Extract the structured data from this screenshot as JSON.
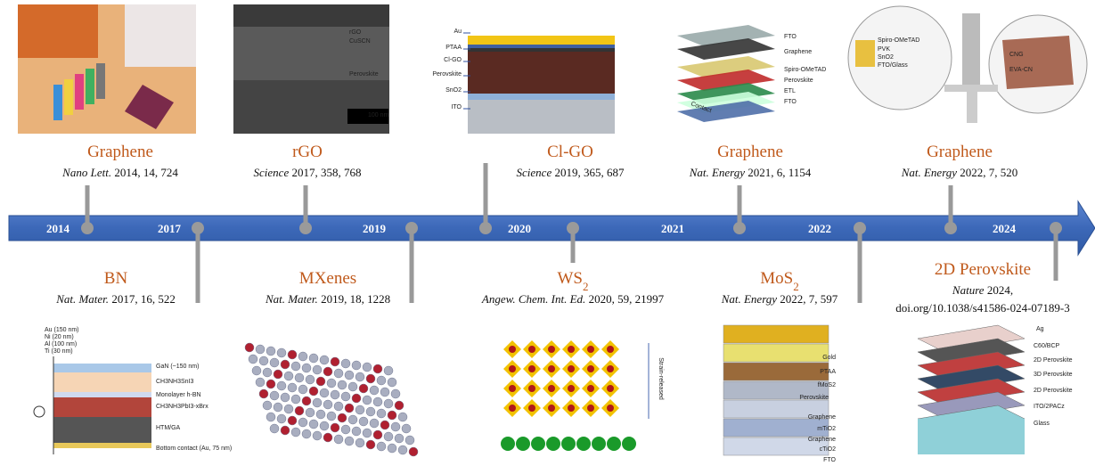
{
  "timeline": {
    "years": [
      "2014",
      "2017",
      "2019",
      "2020",
      "2021",
      "2022",
      "2024"
    ]
  },
  "milestones": [
    {
      "title": "Graphene",
      "journal": "Nano Lett.",
      "details": "2014, 14, 724",
      "image_labels": []
    },
    {
      "title": "BN",
      "journal": "Nat. Mater.",
      "details": "2017, 16, 522",
      "image_labels": [
        "Au (150 nm)",
        "Ni (20 nm)",
        "Al (100 nm)",
        "Ti (30 nm)",
        "GaN (~150 nm)",
        "CH3NH3SnI3",
        "Monolayer h-BN",
        "CH3NH3PbI3-xBrx",
        "HTM/GA",
        "Bottom contact (Au, 75 nm)"
      ]
    },
    {
      "title": "rGO",
      "journal": "Science",
      "details": "2017, 358, 768",
      "image_labels": [
        "rGO",
        "CuSCN",
        "Perovskite",
        "100 nm"
      ]
    },
    {
      "title": "MXenes",
      "journal": "Nat. Mater.",
      "details": "2019, 18, 1228",
      "image_labels": []
    },
    {
      "title": "Cl-GO",
      "journal": "Science",
      "details": "2019, 365, 687",
      "image_labels": [
        "Au",
        "PTAA",
        "Cl-GO",
        "Perovskite",
        "SnO2",
        "ITO"
      ]
    },
    {
      "title": "WS",
      "title_sub": "2",
      "journal": "Angew. Chem. Int. Ed.",
      "details": "2020, 59, 21997",
      "image_labels": [
        "Strain-released"
      ]
    },
    {
      "title": "Graphene",
      "journal": "Nat. Energy",
      "details": "2021, 6, 1154",
      "image_labels": [
        "FTO",
        "Graphene",
        "Spiro-OMeTAD",
        "Perovskite",
        "ETL",
        "FTO",
        "Contact"
      ]
    },
    {
      "title": "MoS",
      "title_sub": "2",
      "journal": "Nat. Energy",
      "details": "2022, 7, 597",
      "image_labels": [
        "Gold",
        "PTAA",
        "fMoS2",
        "Perovskite",
        "Graphene",
        "mTiO2",
        "Graphene",
        "cTiO2",
        "FTO"
      ]
    },
    {
      "title": "Graphene",
      "journal": "Nat. Energy",
      "details": "2022, 7, 520",
      "image_labels": [
        "Spiro-OMeTAD",
        "PVK",
        "SnO2",
        "FTO/Glass",
        "CNG",
        "EVA-CN"
      ]
    },
    {
      "title": "2D Perovskite",
      "journal": "Nature",
      "details": "2024,",
      "doi": "doi.org/10.1038/s41586-024-07189-3",
      "image_labels": [
        "Ag",
        "C60/BCP",
        "2D Perovskite",
        "3D Perovskite",
        "2D Perovskite",
        "ITO/2PACz",
        "Glass"
      ]
    }
  ]
}
